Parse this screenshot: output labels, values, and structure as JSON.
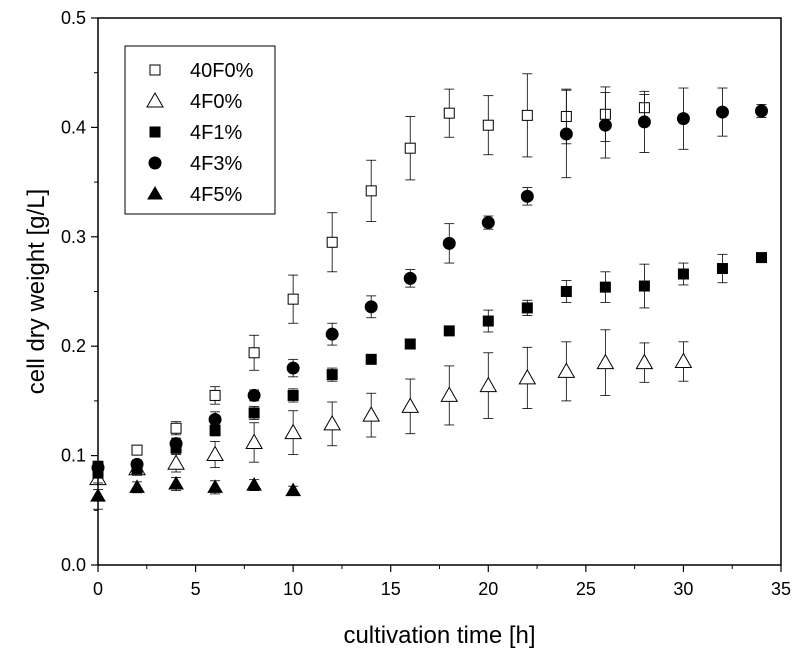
{
  "chart_data": {
    "type": "scatter",
    "title": "",
    "xlabel": "cultivation time [h]",
    "ylabel": "cell dry weight [g/L]",
    "xlim": [
      0,
      35
    ],
    "ylim": [
      0.0,
      0.5
    ],
    "xticks": [
      0,
      5,
      10,
      15,
      20,
      25,
      30,
      35
    ],
    "yticks": [
      0.0,
      0.1,
      0.2,
      0.3,
      0.4,
      0.5
    ],
    "xtick_labels": [
      "0",
      "5",
      "10",
      "15",
      "20",
      "25",
      "30",
      "35"
    ],
    "ytick_labels": [
      "0.0",
      "0.1",
      "0.2",
      "0.3",
      "0.4",
      "0.5"
    ],
    "grid": false,
    "legend_position": "top-left",
    "series": [
      {
        "name": "40F0%",
        "marker": "square-open",
        "x": [
          0,
          2,
          4,
          6,
          8,
          10,
          12,
          14,
          16,
          18,
          20,
          22,
          24,
          26,
          28
        ],
        "y": [
          0.09,
          0.105,
          0.125,
          0.155,
          0.194,
          0.243,
          0.295,
          0.342,
          0.381,
          0.413,
          0.402,
          0.411,
          0.41,
          0.412,
          0.418
        ],
        "err": [
          0.005,
          0.004,
          0.006,
          0.008,
          0.016,
          0.022,
          0.027,
          0.028,
          0.029,
          0.022,
          0.027,
          0.038,
          0.025,
          0.025,
          0.012
        ]
      },
      {
        "name": "4F0%",
        "marker": "triangle-open",
        "x": [
          0,
          2,
          4,
          6,
          8,
          10,
          12,
          14,
          16,
          18,
          20,
          22,
          24,
          26,
          28,
          30
        ],
        "y": [
          0.079,
          0.088,
          0.093,
          0.101,
          0.112,
          0.121,
          0.129,
          0.137,
          0.145,
          0.155,
          0.164,
          0.171,
          0.177,
          0.185,
          0.185,
          0.186
        ],
        "err": [
          0.01,
          0.006,
          0.008,
          0.012,
          0.018,
          0.02,
          0.02,
          0.02,
          0.025,
          0.027,
          0.03,
          0.028,
          0.027,
          0.03,
          0.018,
          0.018
        ]
      },
      {
        "name": "4F1%",
        "marker": "square-filled",
        "x": [
          0,
          2,
          4,
          6,
          8,
          10,
          12,
          14,
          16,
          18,
          20,
          22,
          24,
          26,
          28,
          30,
          32,
          34
        ],
        "y": [
          0.084,
          0.088,
          0.107,
          0.123,
          0.139,
          0.155,
          0.174,
          0.188,
          0.202,
          0.214,
          0.223,
          0.235,
          0.25,
          0.254,
          0.255,
          0.266,
          0.271,
          0.281
        ],
        "err": [
          0.004,
          0.004,
          0.005,
          0.005,
          0.006,
          0.006,
          0.006,
          0.003,
          0.003,
          0.003,
          0.01,
          0.007,
          0.01,
          0.014,
          0.02,
          0.01,
          0.013,
          0.004
        ]
      },
      {
        "name": "4F3%",
        "marker": "circle-filled",
        "x": [
          0,
          2,
          4,
          6,
          8,
          10,
          12,
          14,
          16,
          18,
          20,
          22,
          24,
          26,
          28,
          30,
          32,
          34
        ],
        "y": [
          0.089,
          0.092,
          0.111,
          0.133,
          0.155,
          0.18,
          0.211,
          0.236,
          0.262,
          0.294,
          0.313,
          0.337,
          0.394,
          0.402,
          0.405,
          0.408,
          0.414,
          0.415
        ],
        "err": [
          0.005,
          0.004,
          0.005,
          0.007,
          0.005,
          0.008,
          0.01,
          0.01,
          0.008,
          0.018,
          0.006,
          0.008,
          0.04,
          0.03,
          0.028,
          0.028,
          0.022,
          0.006
        ]
      },
      {
        "name": "4F5%",
        "marker": "triangle-filled",
        "x": [
          0,
          2,
          4,
          6,
          8,
          10
        ],
        "y": [
          0.063,
          0.071,
          0.074,
          0.071,
          0.073,
          0.068
        ],
        "err": [
          0.012,
          0.005,
          0.006,
          0.006,
          0.005,
          0.004
        ]
      }
    ]
  }
}
